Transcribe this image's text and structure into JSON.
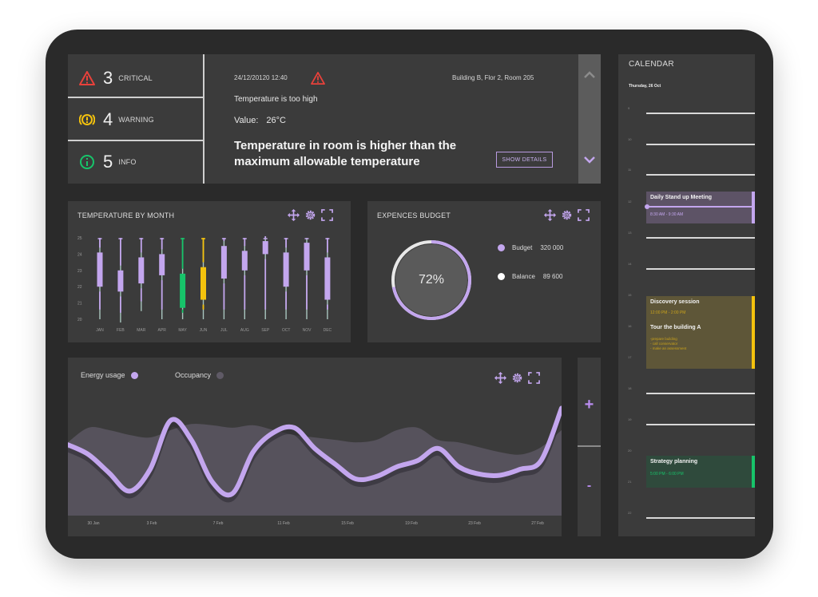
{
  "alerts": {
    "critical": {
      "count": "3",
      "label": "CRITICAL"
    },
    "warning": {
      "count": "4",
      "label": "WARNING"
    },
    "info": {
      "count": "5",
      "label": "INFO"
    }
  },
  "alert_detail": {
    "datetime": "24/12/20120 12:40",
    "location": "Building B, Flor 2, Room 205",
    "message": "Temperature is too high",
    "value_label": "Value:",
    "value": "26°C",
    "headline": "Temperature in room is higher than the maximum allowable temperature",
    "show_details_label": "SHOW DETAILS"
  },
  "temperature_panel": {
    "title": "TEMPERATURE BY MONTH",
    "y_ticks": [
      "25",
      "24",
      "23",
      "22",
      "21",
      "20"
    ],
    "chart_data": {
      "type": "candlestick",
      "categories": [
        "JAN",
        "FEB",
        "MAR",
        "APR",
        "MAY",
        "JUN",
        "JUL",
        "AUG",
        "SEP",
        "OCT",
        "NOV",
        "DEC"
      ],
      "series": [
        {
          "low": 20.0,
          "open": 22.0,
          "close": 24.1,
          "high": 25.0,
          "color": "#c3a6ee"
        },
        {
          "low": 19.8,
          "open": 21.7,
          "close": 23.0,
          "high": 25.0,
          "color": "#c3a6ee"
        },
        {
          "low": 20.5,
          "open": 22.2,
          "close": 23.8,
          "high": 25.0,
          "color": "#c3a6ee"
        },
        {
          "low": 20.0,
          "open": 22.7,
          "close": 24.0,
          "high": 25.0,
          "color": "#c3a6ee"
        },
        {
          "low": 20.0,
          "open": 20.7,
          "close": 22.8,
          "high": 25.0,
          "color": "#17c46a"
        },
        {
          "low": 20.0,
          "open": 21.2,
          "close": 23.2,
          "high": 25.0,
          "color": "#f4c20d"
        },
        {
          "low": 20.0,
          "open": 22.5,
          "close": 24.5,
          "high": 25.0,
          "color": "#c3a6ee"
        },
        {
          "low": 20.0,
          "open": 23.0,
          "close": 24.2,
          "high": 25.0,
          "color": "#c3a6ee"
        },
        {
          "low": 20.0,
          "open": 24.0,
          "close": 24.8,
          "high": 25.0,
          "color": "#c3a6ee"
        },
        {
          "low": 20.0,
          "open": 22.0,
          "close": 24.1,
          "high": 25.0,
          "color": "#c3a6ee"
        },
        {
          "low": 20.0,
          "open": 23.0,
          "close": 24.7,
          "high": 25.0,
          "color": "#c3a6ee"
        },
        {
          "low": 20.0,
          "open": 21.2,
          "close": 23.8,
          "high": 25.0,
          "color": "#c3a6ee"
        }
      ],
      "ylim": [
        20,
        25
      ]
    }
  },
  "budget_panel": {
    "title": "EXPENCES BUDGET",
    "percent_label": "72%",
    "percent": 72,
    "budget_label": "Budget",
    "budget_value": "320 000",
    "balance_label": "Balance",
    "balance_value": "89 600"
  },
  "energy_panel": {
    "legend_energy": "Energy usage",
    "legend_occupancy": "Occupancy",
    "x_ticks": [
      "30 Jan",
      "3 Feb",
      "7 Feb",
      "11 Feb",
      "15 Feb",
      "19 Feb",
      "23 Feb",
      "27 Feb"
    ],
    "zoom_in": "+",
    "zoom_out": "-",
    "chart_data": {
      "type": "area",
      "x": [
        0,
        1,
        2,
        3,
        4,
        5,
        6,
        7,
        8,
        9,
        10,
        11,
        12,
        13,
        14,
        15,
        16,
        17,
        18,
        19,
        20,
        21,
        22,
        23,
        24
      ],
      "series": [
        {
          "name": "Energy usage",
          "values": [
            0.58,
            0.5,
            0.35,
            0.2,
            0.38,
            0.78,
            0.62,
            0.28,
            0.18,
            0.52,
            0.68,
            0.72,
            0.55,
            0.42,
            0.3,
            0.32,
            0.4,
            0.45,
            0.55,
            0.4,
            0.34,
            0.33,
            0.38,
            0.45,
            0.88
          ]
        },
        {
          "name": "Occupancy",
          "values": [
            0.6,
            0.72,
            0.7,
            0.66,
            0.64,
            0.7,
            0.75,
            0.74,
            0.72,
            0.74,
            0.7,
            0.66,
            0.64,
            0.62,
            0.6,
            0.62,
            0.7,
            0.72,
            0.62,
            0.6,
            0.56,
            0.52,
            0.5,
            0.56,
            0.7
          ]
        }
      ]
    }
  },
  "calendar": {
    "title": "CALENDAR",
    "date": "Thursday, 26 Oct",
    "hours": [
      "9",
      "10",
      "11",
      "12",
      "13",
      "14",
      "15",
      "16",
      "17",
      "18",
      "19",
      "20",
      "21",
      "22"
    ],
    "events": [
      {
        "title": "Daily Stand up Meeting",
        "time": "8:30 AM - 9:30 AM",
        "color": "#c3a6ee"
      },
      {
        "title": "Discovery session",
        "time": "12:00 PM - 2:00 PM",
        "subtitle": "Tour the building A",
        "notes": [
          "-prepare building",
          "- call conservator",
          "- make an assessment"
        ],
        "color": "#f4c20d"
      },
      {
        "title": "Strategy planning",
        "time": "5:00 PM - 6:00 PM",
        "color": "#17c46a"
      }
    ]
  },
  "colors": {
    "accent": "#b98cf0",
    "critical": "#e8413b",
    "warning": "#f4c20d",
    "info": "#17c46a",
    "panel": "#3b3b3b"
  }
}
